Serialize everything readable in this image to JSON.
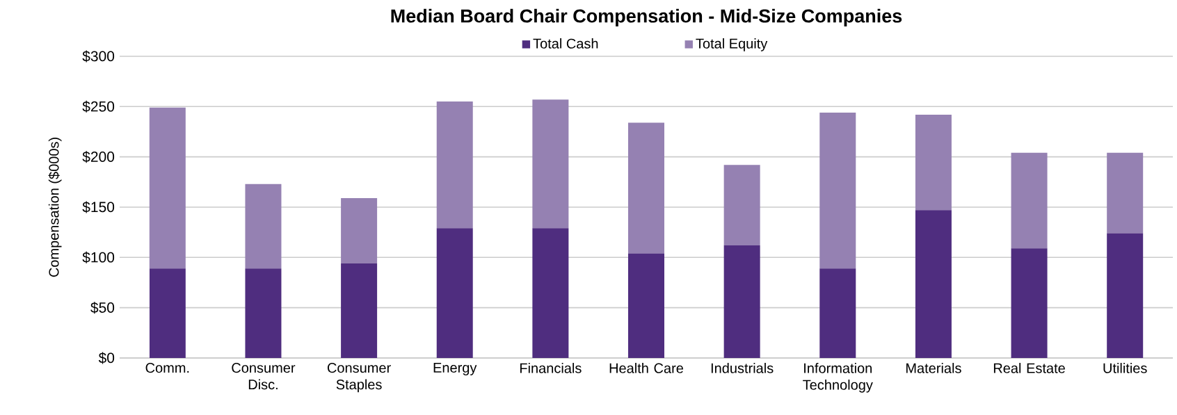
{
  "chart_data": {
    "type": "bar",
    "title": "Median Board Chair Compensation - Mid-Size Companies",
    "ylabel": "Compensation ($000s)",
    "categories": [
      "Comm.",
      "Consumer Disc.",
      "Consumer Staples",
      "Energy",
      "Financials",
      "Health Care",
      "Industrials",
      "Information Technology",
      "Materials",
      "Real Estate",
      "Utilities"
    ],
    "series": [
      {
        "name": "Total Cash",
        "color": "#4f2d7f",
        "values": [
          89,
          89,
          94,
          129,
          129,
          104,
          112,
          89,
          147,
          109,
          124
        ]
      },
      {
        "name": "Total Equity",
        "color": "#9581b2",
        "values": [
          160,
          84,
          65,
          126,
          128,
          130,
          80,
          155,
          95,
          95,
          80
        ]
      }
    ],
    "stacked": true,
    "ylim": [
      0,
      300
    ],
    "yticks": [
      {
        "value": 0,
        "label": "$0"
      },
      {
        "value": 50,
        "label": "$50"
      },
      {
        "value": 100,
        "label": "$100"
      },
      {
        "value": 150,
        "label": "$150"
      },
      {
        "value": 200,
        "label": "$200"
      },
      {
        "value": 250,
        "label": "$250"
      },
      {
        "value": 300,
        "label": "$300"
      }
    ],
    "grid": "y",
    "legend": "top"
  }
}
